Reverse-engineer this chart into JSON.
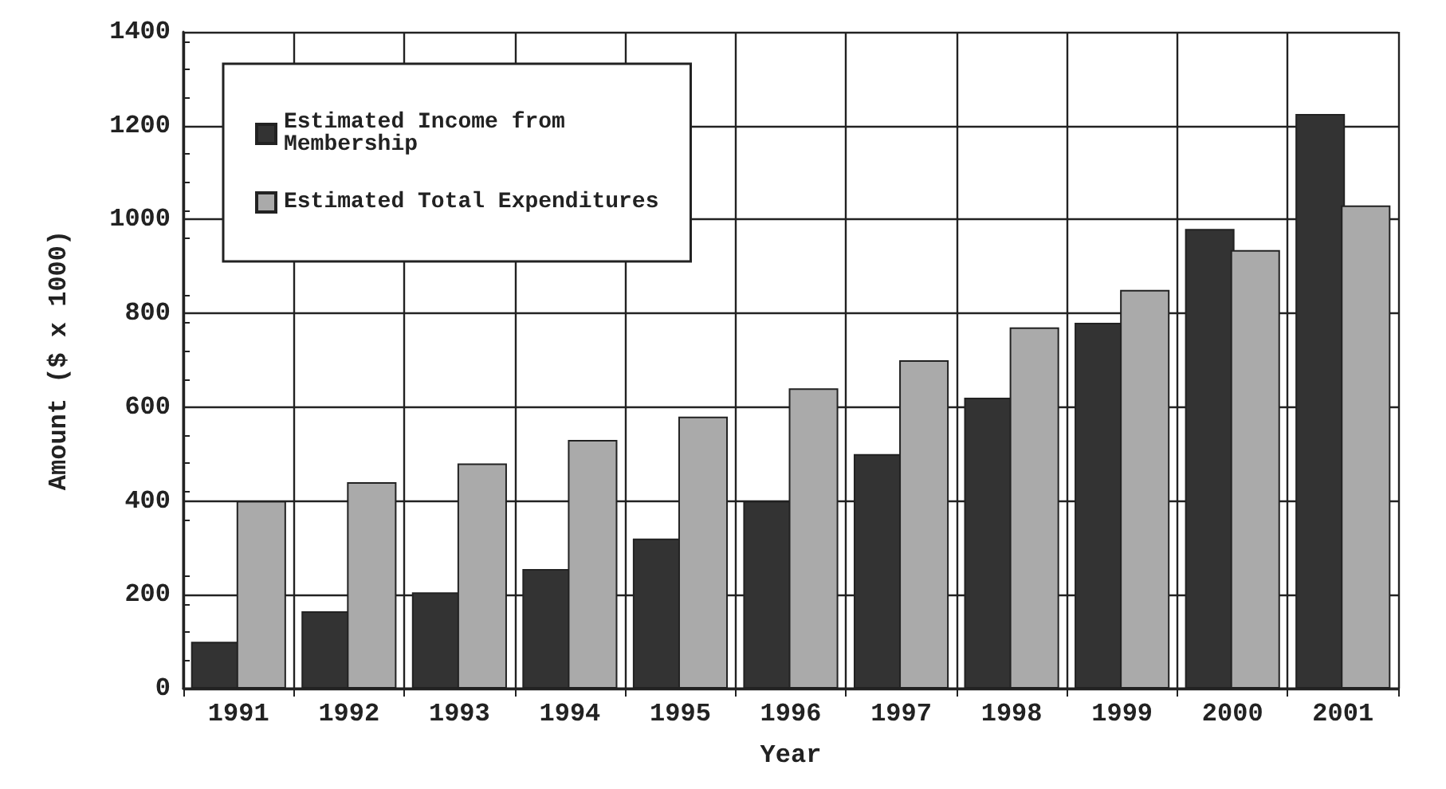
{
  "chart_data": {
    "type": "bar",
    "xlabel": "Year",
    "ylabel": "Amount ($ x 1000)",
    "categories": [
      "1991",
      "1992",
      "1993",
      "1994",
      "1995",
      "1996",
      "1997",
      "1998",
      "1999",
      "2000",
      "2001"
    ],
    "series": [
      {
        "name": "Estimated Income from\nMembership",
        "color": "#333333",
        "values": [
          100,
          165,
          205,
          255,
          320,
          400,
          500,
          620,
          780,
          980,
          1225
        ]
      },
      {
        "name": "Estimated Total Expenditures",
        "color": "#aaaaaa",
        "values": [
          400,
          440,
          480,
          530,
          580,
          640,
          700,
          770,
          850,
          935,
          1030
        ]
      }
    ],
    "ylim": [
      0,
      1400
    ],
    "yticks": [
      0,
      200,
      400,
      600,
      800,
      1000,
      1200,
      1400
    ],
    "grid": true,
    "legend": "top left"
  }
}
